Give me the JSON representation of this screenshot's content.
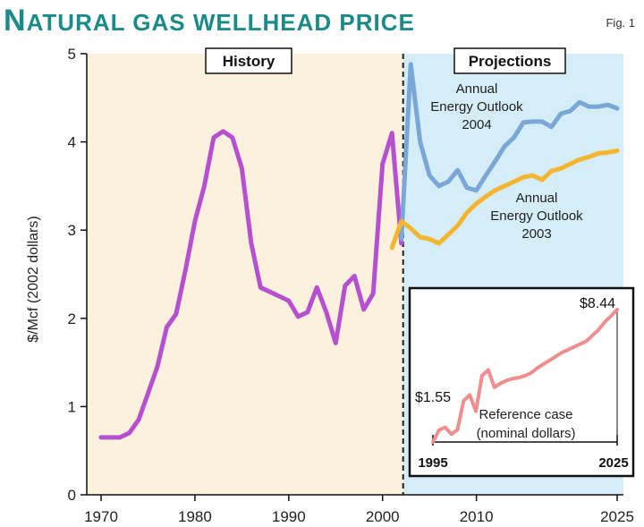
{
  "figure": {
    "title_first": "N",
    "title_rest": "ATURAL GAS WELLHEAD PRICE",
    "label": "Fig. 1"
  },
  "colors": {
    "history_bg": "#fbf1dc",
    "projection_bg": "#d4edf7",
    "aeo2004": "#7aa7d8",
    "aeo2003": "#f5b530",
    "history": "#b64fd0",
    "inset": "#f08e8e",
    "title": "#1a8a8a"
  },
  "chart_data": [
    {
      "type": "line",
      "ylabel": "$/Mcf (2002 dollars)",
      "xlabel": "",
      "xlim": [
        1968,
        2025.5
      ],
      "ylim": [
        0,
        5
      ],
      "x_ticks": [
        1970,
        1980,
        1990,
        2000,
        2010,
        2025
      ],
      "y_ticks": [
        0,
        1,
        2,
        3,
        4,
        5
      ],
      "region_labels": {
        "history": "History",
        "projections": "Projections"
      },
      "history_projection_boundary": 2002,
      "series": [
        {
          "name": "History",
          "x": [
            1970,
            1971,
            1972,
            1973,
            1974,
            1975,
            1976,
            1977,
            1978,
            1979,
            1980,
            1981,
            1982,
            1983,
            1984,
            1985,
            1986,
            1987,
            1988,
            1989,
            1990,
            1991,
            1992,
            1993,
            1994,
            1995,
            1996,
            1997,
            1998,
            1999,
            2000,
            2001,
            2002
          ],
          "values": [
            0.65,
            0.65,
            0.65,
            0.7,
            0.85,
            1.15,
            1.45,
            1.9,
            2.05,
            2.55,
            3.1,
            3.5,
            4.05,
            4.12,
            4.05,
            3.7,
            2.85,
            2.35,
            2.3,
            2.25,
            2.2,
            2.02,
            2.07,
            2.35,
            2.07,
            1.72,
            2.37,
            2.48,
            2.1,
            2.28,
            3.75,
            4.1,
            2.85
          ]
        },
        {
          "name": "Annual Energy Outlook 2004",
          "label_lines": [
            "Annual",
            "Energy Outlook",
            "2004"
          ],
          "x": [
            2002,
            2003,
            2004,
            2005,
            2006,
            2007,
            2008,
            2009,
            2010,
            2011,
            2012,
            2013,
            2014,
            2015,
            2016,
            2017,
            2018,
            2019,
            2020,
            2021,
            2022,
            2023,
            2024,
            2025
          ],
          "values": [
            2.9,
            4.88,
            4.0,
            3.62,
            3.5,
            3.55,
            3.68,
            3.48,
            3.45,
            3.62,
            3.78,
            3.95,
            4.05,
            4.22,
            4.23,
            4.23,
            4.17,
            4.32,
            4.35,
            4.45,
            4.4,
            4.4,
            4.42,
            4.38
          ]
        },
        {
          "name": "Annual Energy Outlook 2003",
          "label_lines": [
            "Annual",
            "Energy Outlook",
            "2003"
          ],
          "x": [
            2001,
            2002,
            2003,
            2004,
            2005,
            2006,
            2007,
            2008,
            2009,
            2010,
            2011,
            2012,
            2013,
            2014,
            2015,
            2016,
            2017,
            2018,
            2019,
            2020,
            2021,
            2022,
            2023,
            2024,
            2025
          ],
          "values": [
            2.8,
            3.1,
            3.02,
            2.92,
            2.9,
            2.85,
            2.95,
            3.05,
            3.2,
            3.3,
            3.38,
            3.45,
            3.5,
            3.55,
            3.6,
            3.62,
            3.57,
            3.67,
            3.7,
            3.75,
            3.8,
            3.83,
            3.87,
            3.88,
            3.9
          ]
        }
      ]
    },
    {
      "type": "line",
      "title": "Reference case",
      "subtitle": "(nominal dollars)",
      "x_ticks": [
        1995,
        2025
      ],
      "xlim": [
        1995,
        2025
      ],
      "ylim": [
        0,
        9
      ],
      "annotations": {
        "start": "$1.55",
        "end": "$8.44"
      },
      "series": [
        {
          "name": "Reference case",
          "x": [
            1995,
            1996,
            1997,
            1998,
            1999,
            2000,
            2001,
            2002,
            2003,
            2004,
            2005,
            2006,
            2007,
            2008,
            2009,
            2010,
            2011,
            2012,
            2013,
            2014,
            2015,
            2016,
            2017,
            2018,
            2019,
            2020,
            2021,
            2022,
            2023,
            2024,
            2025
          ],
          "values": [
            1.55,
            2.17,
            2.32,
            1.96,
            2.19,
            3.69,
            4.0,
            3.15,
            5.0,
            5.3,
            4.4,
            4.6,
            4.75,
            4.85,
            4.9,
            5.0,
            5.15,
            5.4,
            5.6,
            5.8,
            6.0,
            6.2,
            6.35,
            6.5,
            6.65,
            6.8,
            7.1,
            7.4,
            7.8,
            8.1,
            8.44
          ]
        }
      ]
    }
  ]
}
